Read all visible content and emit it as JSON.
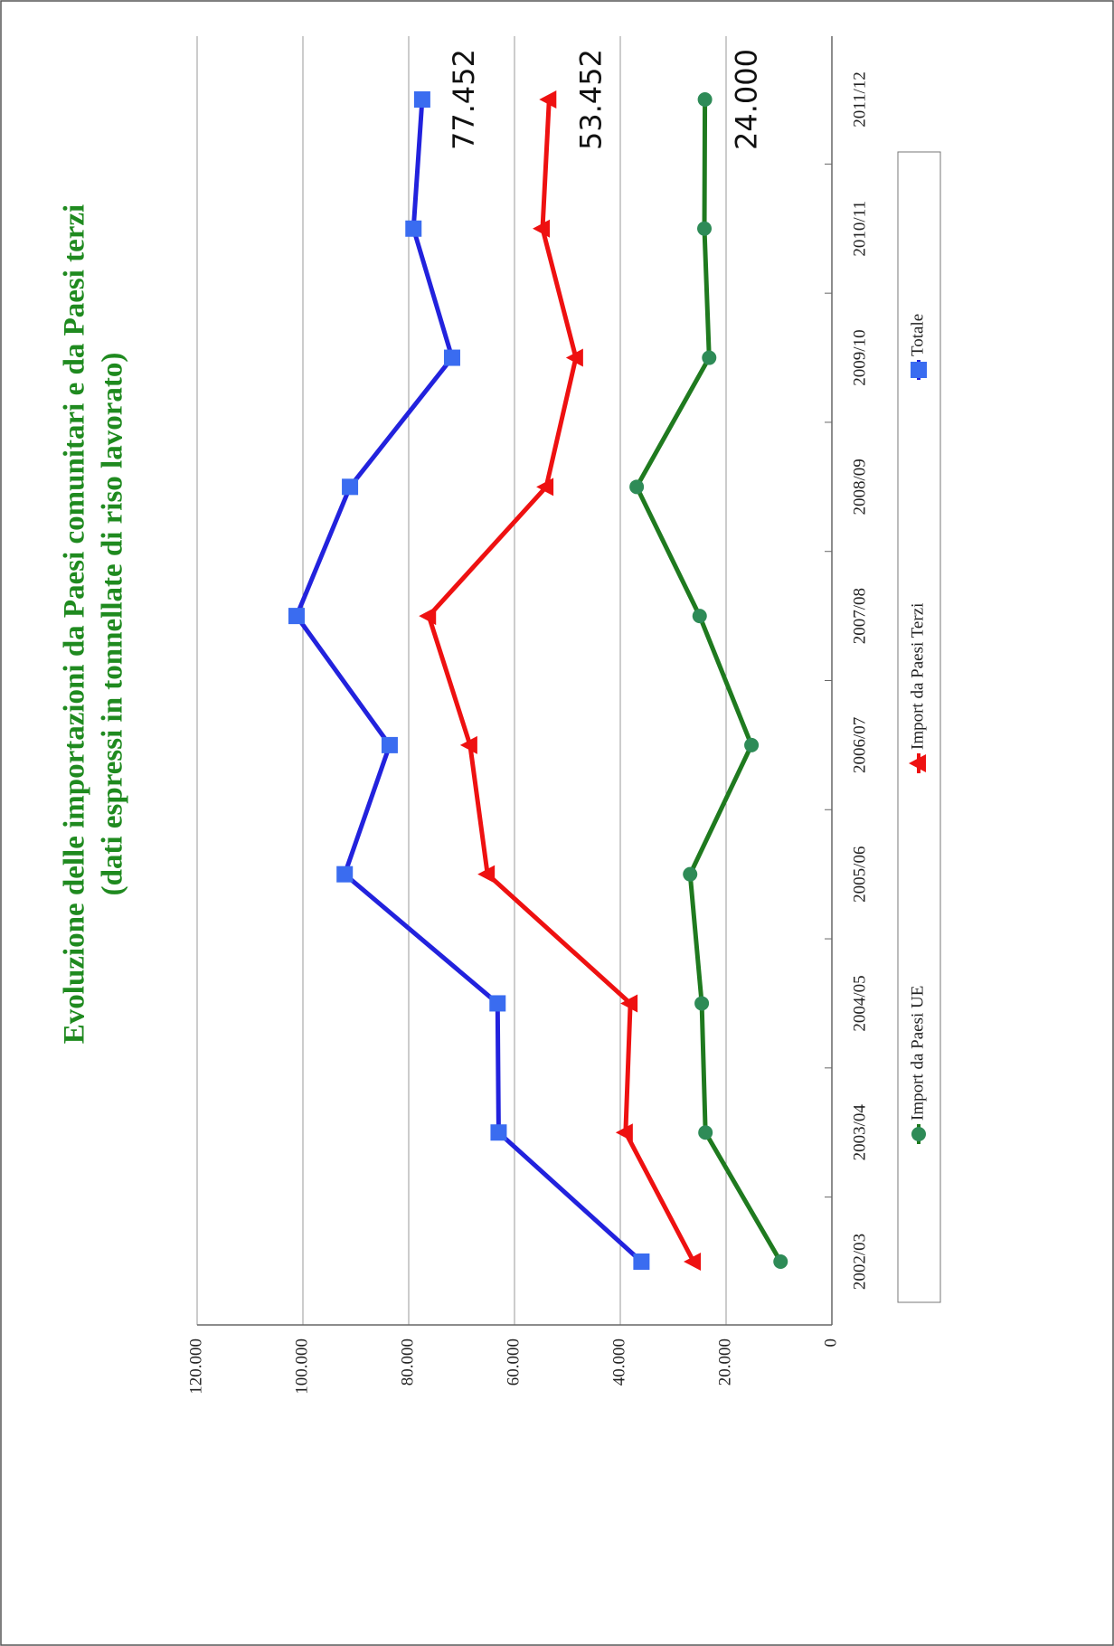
{
  "chart_data": {
    "type": "line",
    "title": "Evoluzione delle importazioni da Paesi comunitari e da Paesi terzi",
    "subtitle": "(dati espressi in tonnellate di riso lavorato)",
    "categories": [
      "2002/03",
      "2003/04",
      "2004/05",
      "2005/06",
      "2006/07",
      "2007/08",
      "2008/09",
      "2009/10",
      "2010/11",
      "2011/12"
    ],
    "series": [
      {
        "name": "Import da Paesi UE",
        "color": "#1f7a1f",
        "marker_color": "#2e8b57",
        "marker": "circle",
        "values": [
          9700,
          23900,
          24600,
          26800,
          15200,
          25000,
          36900,
          23200,
          24100,
          24000
        ],
        "value_labels": [
          null,
          null,
          null,
          null,
          null,
          null,
          null,
          null,
          null,
          "24.000"
        ]
      },
      {
        "name": "Import da Paesi Terzi",
        "color": "#ee1111",
        "marker_color": "#ee1111",
        "marker": "triangle",
        "values": [
          26150,
          39000,
          38100,
          65100,
          68400,
          76200,
          54000,
          48400,
          54700,
          53452
        ],
        "value_labels": [
          null,
          null,
          null,
          null,
          null,
          null,
          null,
          null,
          null,
          "53.452"
        ]
      },
      {
        "name": "Totale",
        "color": "#2222dd",
        "marker_color": "#3a6cf0",
        "marker": "square",
        "values": [
          36000,
          63000,
          63200,
          92100,
          83600,
          101200,
          91100,
          71800,
          79100,
          77452
        ],
        "value_labels": [
          null,
          null,
          null,
          null,
          null,
          null,
          null,
          null,
          null,
          "77.452"
        ]
      }
    ],
    "ylim": [
      0,
      120000
    ],
    "yticks": [
      0,
      {
        "value": 20000,
        "label": "20.000"
      },
      {
        "value": 40000,
        "label": "40.000"
      },
      {
        "value": 60000,
        "label": "60.000"
      },
      {
        "value": 80000,
        "label": "80.000"
      },
      {
        "value": 100000,
        "label": "100.000"
      },
      {
        "value": 120000,
        "label": "120.000"
      }
    ],
    "grid": true,
    "legend": "bottom",
    "rotated": true
  }
}
